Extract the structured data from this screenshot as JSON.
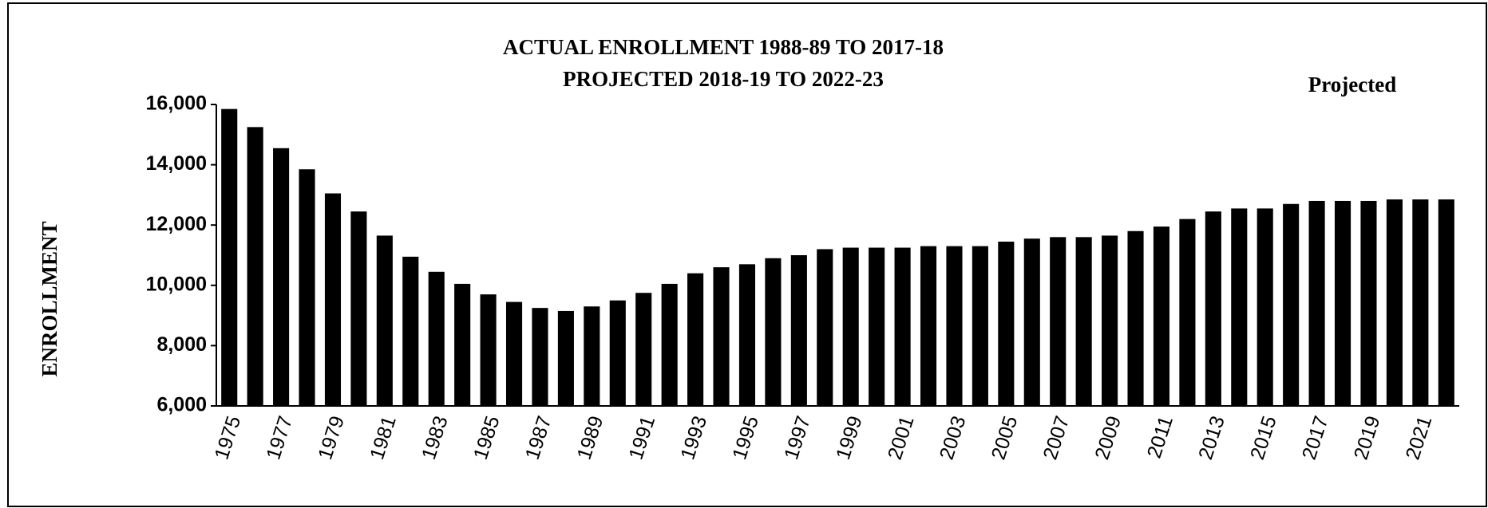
{
  "chart_data": {
    "type": "bar",
    "title": [
      "ACTUAL ENROLLMENT  1988-89 TO 2017-18",
      "PROJECTED  2018-19 TO 2022-23"
    ],
    "annotation": "Projected",
    "ylabel": "ENROLLMENT",
    "categories": [
      "1975",
      null,
      "1977",
      null,
      "1979",
      null,
      "1981",
      null,
      "1983",
      null,
      "1985",
      null,
      "1987",
      null,
      "1989",
      null,
      "1991",
      null,
      "1993",
      null,
      "1995",
      null,
      "1997",
      null,
      "1999",
      null,
      "2001",
      null,
      "2003",
      null,
      "2005",
      null,
      "2007",
      null,
      "2009",
      null,
      "2011",
      null,
      "2013",
      null,
      "2015",
      null,
      "2017",
      null,
      "2019",
      null,
      "2021",
      null
    ],
    "values": [
      15850,
      15250,
      14550,
      13850,
      13050,
      12450,
      11650,
      10950,
      10450,
      10050,
      9700,
      9450,
      9250,
      9150,
      9300,
      9500,
      9750,
      10050,
      10400,
      10600,
      10700,
      10900,
      11000,
      11200,
      11250,
      11250,
      11250,
      11300,
      11300,
      11300,
      11450,
      11550,
      11600,
      11600,
      11650,
      11800,
      11950,
      12200,
      12450,
      12550,
      12550,
      12700,
      12800,
      12800,
      12800,
      12850,
      12850,
      12850
    ],
    "color": "#000000",
    "ylim": [
      6000,
      16000
    ],
    "yticks": [
      {
        "value": 6000,
        "label": "6,000"
      },
      {
        "value": 8000,
        "label": "8,000"
      },
      {
        "value": 10000,
        "label": "10,000"
      },
      {
        "value": 12000,
        "label": "12,000"
      },
      {
        "value": 14000,
        "label": "14,000"
      },
      {
        "value": 16000,
        "label": "16,000"
      }
    ]
  }
}
